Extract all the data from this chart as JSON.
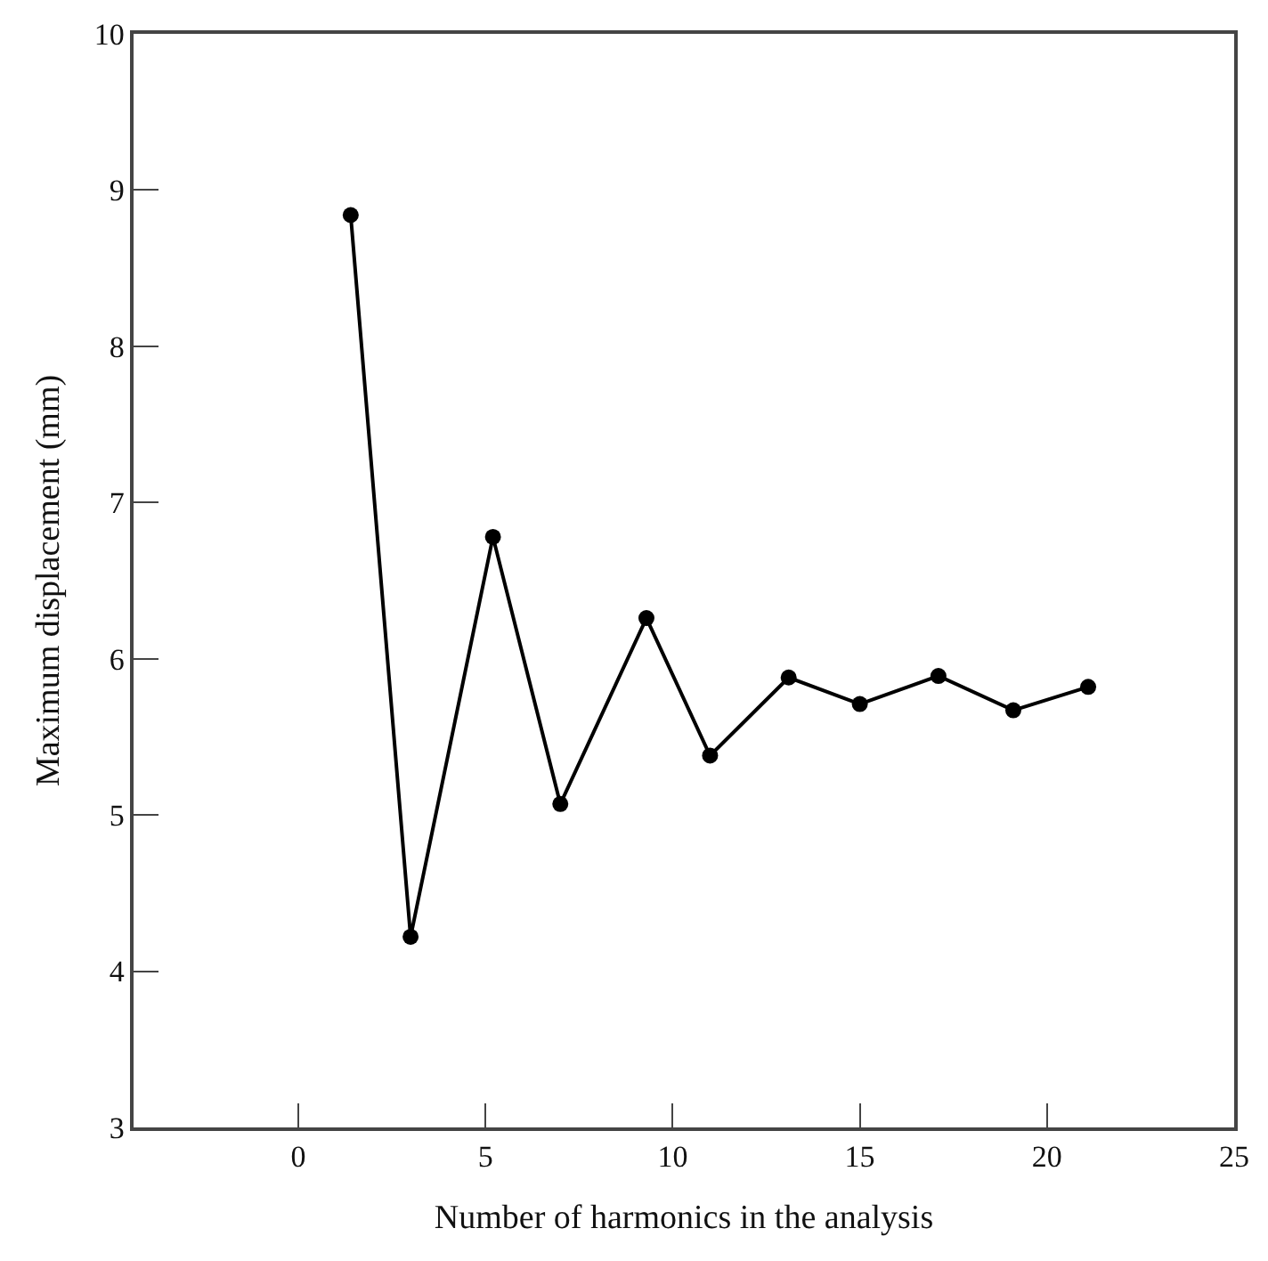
{
  "chart_data": {
    "type": "line",
    "xlabel": "Number of harmonics in the analysis",
    "ylabel": "Maximum displacement (mm)",
    "x": [
      1.4,
      3.0,
      5.2,
      7.0,
      9.3,
      11.0,
      13.1,
      15.0,
      17.1,
      19.1,
      21.1
    ],
    "series": [
      {
        "color": "#000000",
        "values": [
          8.84,
          4.22,
          6.78,
          5.07,
          6.26,
          5.38,
          5.88,
          5.71,
          5.89,
          5.67,
          5.82
        ]
      }
    ],
    "xlim": [
      -4.4,
      25
    ],
    "xticks": [
      0,
      5,
      10,
      15,
      20,
      25
    ],
    "ylim": [
      3,
      10
    ],
    "yticks": [
      3,
      4,
      5,
      6,
      7,
      8,
      9,
      10
    ],
    "legend": false,
    "marker": "circle",
    "line_style": "solid"
  }
}
